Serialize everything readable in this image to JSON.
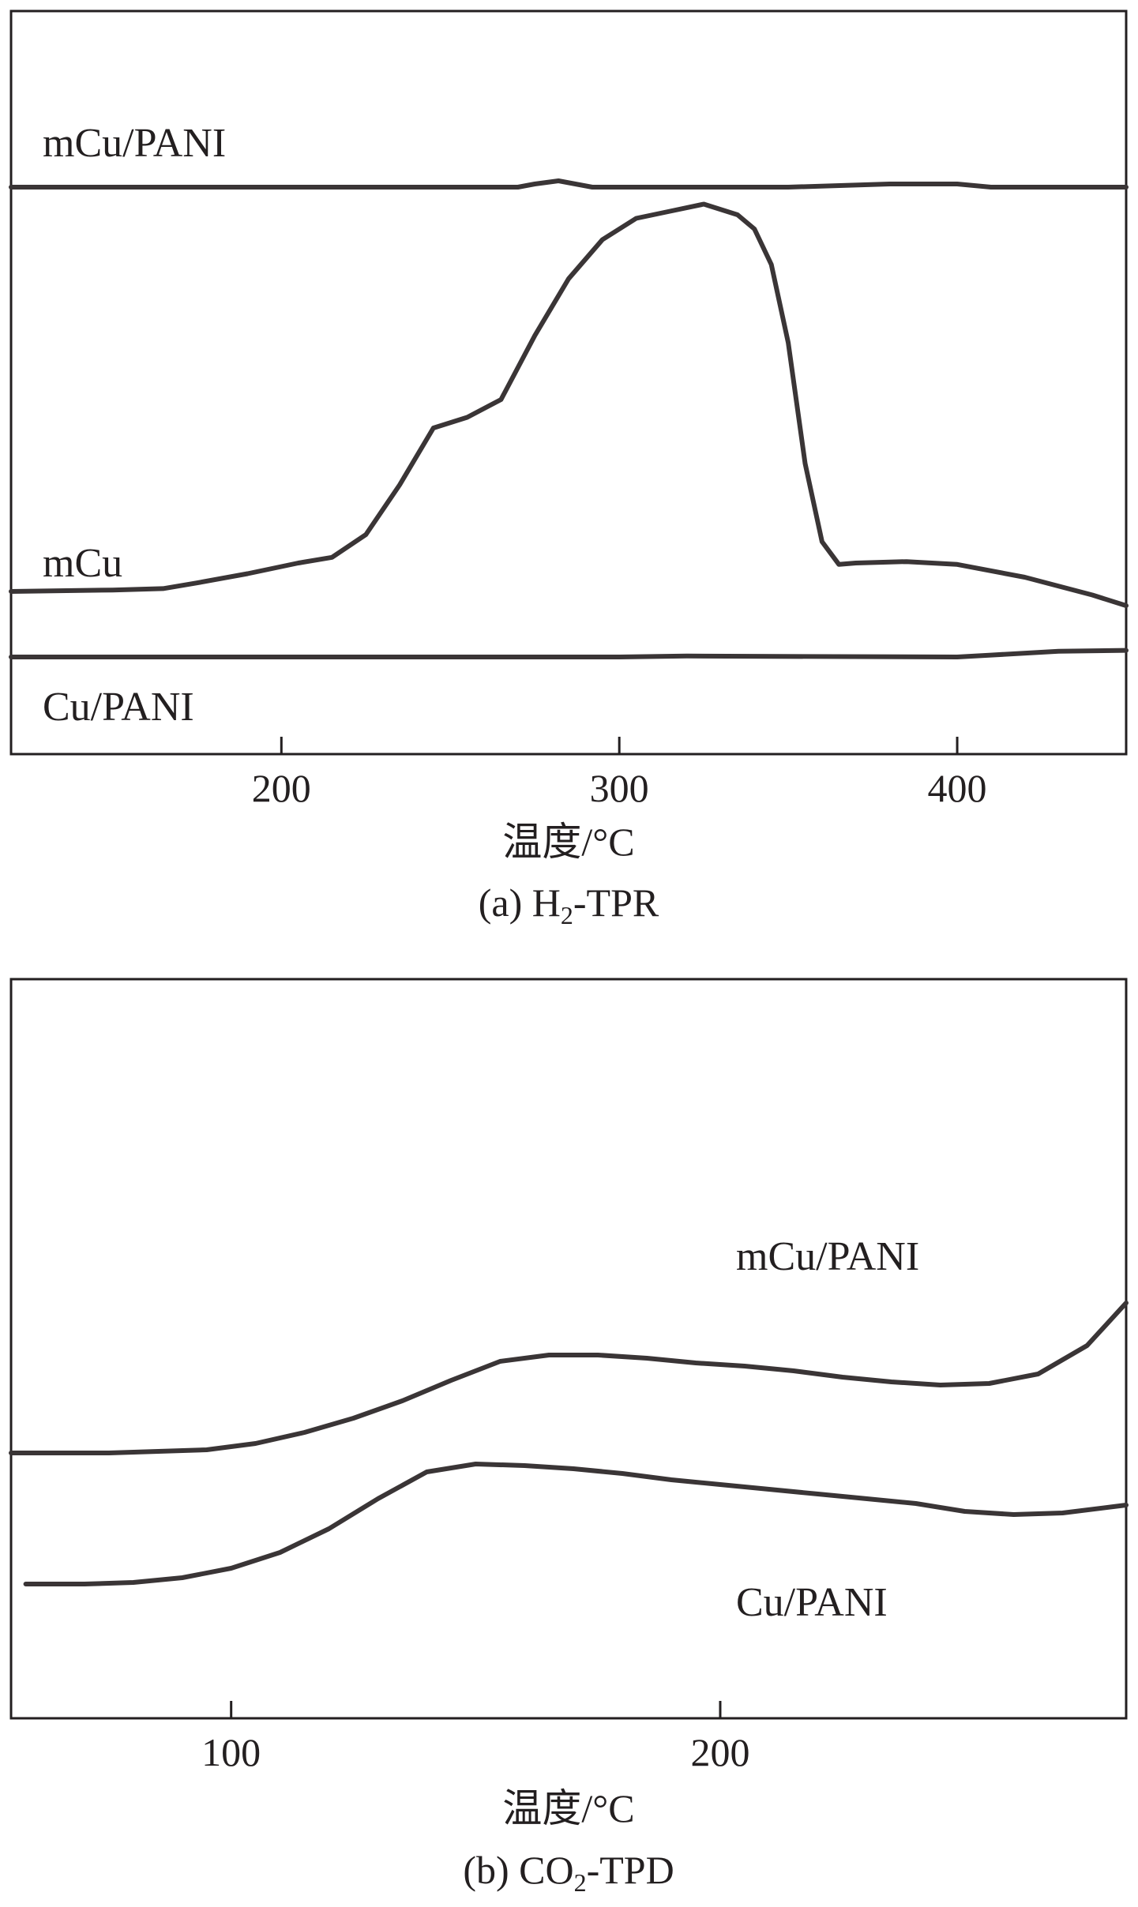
{
  "chart_data": [
    {
      "type": "line",
      "caption": "(a) H₂-TPR",
      "caption_parts": {
        "prefix": "(a) H",
        "sub": "2",
        "suffix": "-TPR"
      },
      "xlabel": "温度/°C",
      "ylabel": "",
      "xlim": [
        120,
        450
      ],
      "xticks": [
        200,
        300,
        400
      ],
      "yticks": [],
      "grid": false,
      "legend": "none",
      "series": [
        {
          "name": "mCu/PANI",
          "x": [
            120,
            170,
            270,
            275,
            282,
            287,
            292,
            300,
            350,
            380,
            400,
            410,
            450
          ],
          "y": [
            6.95,
            6.95,
            6.95,
            6.96,
            6.97,
            6.96,
            6.95,
            6.95,
            6.95,
            6.96,
            6.96,
            6.95,
            6.95
          ]
        },
        {
          "name": "mCu",
          "x": [
            120,
            150,
            165,
            175,
            190,
            205,
            215,
            225,
            235,
            245,
            255,
            265,
            275,
            285,
            295,
            305,
            315,
            325,
            335,
            340,
            345,
            350,
            355,
            360,
            365,
            370,
            385,
            400,
            420,
            440,
            450
          ],
          "y": [
            1.0,
            1.02,
            1.04,
            1.12,
            1.25,
            1.4,
            1.48,
            1.8,
            2.5,
            3.3,
            3.45,
            3.7,
            4.6,
            5.4,
            5.95,
            6.25,
            6.35,
            6.45,
            6.3,
            6.1,
            5.6,
            4.5,
            2.8,
            1.7,
            1.38,
            1.4,
            1.42,
            1.38,
            1.2,
            0.95,
            0.8
          ]
        },
        {
          "name": "Cu/PANI",
          "x": [
            120,
            300,
            320,
            400,
            410,
            430,
            450
          ],
          "y": [
            0.0,
            0.0,
            0.02,
            0.0,
            0.04,
            0.12,
            0.14
          ]
        }
      ]
    },
    {
      "type": "line",
      "caption": "(b) CO₂-TPD",
      "caption_parts": {
        "prefix": "(b) CO",
        "sub": "2",
        "suffix": "-TPD"
      },
      "xlabel": "温度/°C",
      "ylabel": "",
      "xlim": [
        55,
        283
      ],
      "xticks": [
        100,
        200
      ],
      "yticks": [],
      "grid": false,
      "legend": "none",
      "series": [
        {
          "name": "mCu/PANI",
          "x": [
            55,
            75,
            95,
            105,
            115,
            125,
            135,
            145,
            155,
            165,
            175,
            185,
            195,
            205,
            215,
            225,
            235,
            245,
            255,
            265,
            275,
            283
          ],
          "y": [
            0.0,
            0.0,
            0.02,
            0.06,
            0.13,
            0.22,
            0.33,
            0.46,
            0.58,
            0.62,
            0.62,
            0.6,
            0.57,
            0.55,
            0.52,
            0.48,
            0.45,
            0.43,
            0.44,
            0.5,
            0.68,
            0.95
          ]
        },
        {
          "name": "Cu/PANI",
          "x": [
            58,
            70,
            80,
            90,
            100,
            110,
            120,
            130,
            140,
            150,
            160,
            170,
            180,
            190,
            200,
            210,
            220,
            230,
            240,
            250,
            260,
            270,
            283
          ],
          "y": [
            -0.88,
            -0.88,
            -0.87,
            -0.84,
            -0.78,
            -0.68,
            -0.53,
            -0.34,
            -0.17,
            -0.12,
            -0.13,
            -0.15,
            -0.18,
            -0.22,
            -0.25,
            -0.28,
            -0.31,
            -0.34,
            -0.37,
            -0.42,
            -0.44,
            -0.43,
            -0.38
          ]
        }
      ]
    }
  ]
}
